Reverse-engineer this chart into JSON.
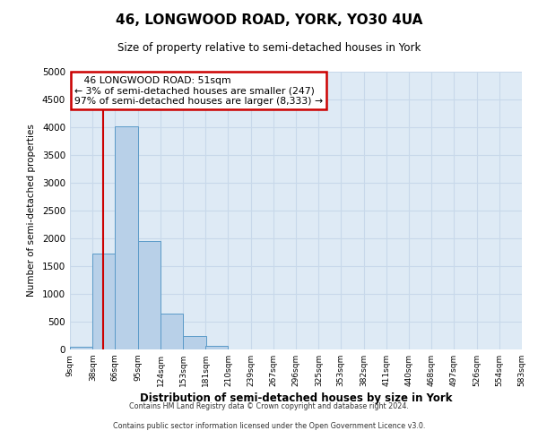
{
  "title": "46, LONGWOOD ROAD, YORK, YO30 4UA",
  "subtitle": "Size of property relative to semi-detached houses in York",
  "xlabel": "Distribution of semi-detached houses by size in York",
  "ylabel": "Number of semi-detached properties",
  "bar_color": "#b8d0e8",
  "bar_edge_color": "#5a9ac8",
  "bar_left_edges": [
    9,
    38,
    66,
    95,
    124,
    153,
    181,
    210,
    239,
    267,
    296,
    325,
    353,
    382,
    411,
    440,
    468,
    497,
    526,
    554
  ],
  "bar_heights": [
    50,
    1720,
    4020,
    1950,
    650,
    240,
    70,
    0,
    0,
    0,
    0,
    0,
    0,
    0,
    0,
    0,
    0,
    0,
    0,
    0
  ],
  "bin_width": 29,
  "x_tick_labels": [
    "9sqm",
    "38sqm",
    "66sqm",
    "95sqm",
    "124sqm",
    "153sqm",
    "181sqm",
    "210sqm",
    "239sqm",
    "267sqm",
    "296sqm",
    "325sqm",
    "353sqm",
    "382sqm",
    "411sqm",
    "440sqm",
    "468sqm",
    "497sqm",
    "526sqm",
    "554sqm",
    "583sqm"
  ],
  "x_tick_positions": [
    9,
    38,
    66,
    95,
    124,
    153,
    181,
    210,
    239,
    267,
    296,
    325,
    353,
    382,
    411,
    440,
    468,
    497,
    526,
    554,
    583
  ],
  "ylim": [
    0,
    5000
  ],
  "yticks": [
    0,
    500,
    1000,
    1500,
    2000,
    2500,
    3000,
    3500,
    4000,
    4500,
    5000
  ],
  "red_line_x": 51,
  "property_label": "46 LONGWOOD ROAD: 51sqm",
  "pct_smaller": 3,
  "count_smaller": 247,
  "pct_larger": 97,
  "count_larger": 8333,
  "annotation_box_color": "#ffffff",
  "annotation_box_edge_color": "#cc0000",
  "red_line_color": "#cc0000",
  "grid_color": "#c8d8ea",
  "background_color": "#deeaf5",
  "fig_background": "#ffffff",
  "footer_line1": "Contains HM Land Registry data © Crown copyright and database right 2024.",
  "footer_line2": "Contains public sector information licensed under the Open Government Licence v3.0."
}
